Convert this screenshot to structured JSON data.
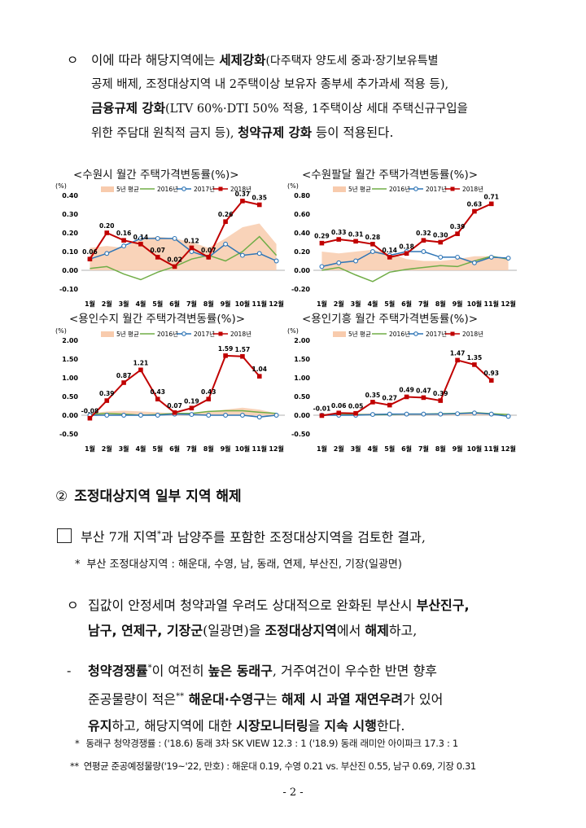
{
  "para1": {
    "bullet": "ㅇ",
    "line1_a": "이에 따라 해당지역에는 ",
    "line1_b": "세제강화",
    "line1_c": "(다주택자 양도세 중과·장기보유특별",
    "line2": "공제 배제, 조정대상지역 내 2주택이상 보유자 종부세 추가과세 적용 등),",
    "line3_a": "금융규제 강화",
    "line3_b": "(LTV 60%·DTI 50% 적용, 1주택이상 세대 주택신규구입을",
    "line4_a": "위한 주담대 원칙적 금지 등), ",
    "line4_b": "청약규제 강화",
    "line4_c": " 등이 적용된다."
  },
  "chart_data": [
    {
      "type": "line",
      "title": "<수원시 월간 주택가격변동률(%)>",
      "unit": "(%)",
      "categories": [
        "1월",
        "2월",
        "3월",
        "4월",
        "5월",
        "6월",
        "7월",
        "8월",
        "9월",
        "10월",
        "11월",
        "12월"
      ],
      "ylim": [
        -0.1,
        0.4
      ],
      "yticks": [
        "0.40",
        "0.30",
        "0.20",
        "0.10",
        "0.00",
        "-0.10"
      ],
      "legend": [
        "5년 평균",
        "2016년",
        "2017년",
        "2018년"
      ],
      "series": [
        {
          "name": "5년 평균",
          "kind": "area",
          "values": [
            0.12,
            0.13,
            0.12,
            0.17,
            0.18,
            0.17,
            0.15,
            0.12,
            0.17,
            0.23,
            0.25,
            0.14
          ]
        },
        {
          "name": "2016년",
          "kind": "line",
          "values": [
            0.01,
            0.02,
            -0.02,
            -0.05,
            -0.01,
            0.02,
            0.06,
            0.08,
            0.05,
            0.1,
            0.18,
            0.08
          ]
        },
        {
          "name": "2017년",
          "kind": "line",
          "values": [
            0.06,
            0.09,
            0.13,
            0.17,
            0.17,
            0.17,
            0.1,
            0.07,
            0.14,
            0.08,
            0.09,
            0.05
          ]
        },
        {
          "name": "2018년",
          "kind": "line",
          "values": [
            0.06,
            0.2,
            0.16,
            0.14,
            0.07,
            0.02,
            0.12,
            0.07,
            0.26,
            0.37,
            0.35,
            null
          ],
          "labels": [
            "0.06",
            "0.20",
            "0.16",
            "0.14",
            "0.07",
            "0.02",
            "0.12",
            "0.07",
            "0.26",
            "0.37",
            "0.35",
            ""
          ]
        }
      ]
    },
    {
      "type": "line",
      "title": "<수원팔달 월간 주택가격변동률(%)>",
      "unit": "(%)",
      "categories": [
        "1월",
        "2월",
        "3월",
        "4월",
        "5월",
        "6월",
        "7월",
        "8월",
        "9월",
        "10월",
        "11월",
        "12월"
      ],
      "ylim": [
        -0.2,
        0.8
      ],
      "yticks": [
        "0.80",
        "0.60",
        "0.40",
        "0.20",
        "0.00",
        "-0.20"
      ],
      "legend": [
        "5년 평균",
        "2016년",
        "2017년",
        "2018년"
      ],
      "series": [
        {
          "name": "5년 평균",
          "kind": "area",
          "values": [
            0.2,
            0.18,
            0.2,
            0.22,
            0.18,
            0.12,
            0.1,
            0.1,
            0.12,
            0.15,
            0.15,
            0.12
          ]
        },
        {
          "name": "2016년",
          "kind": "line",
          "values": [
            0.0,
            0.03,
            -0.05,
            -0.12,
            -0.02,
            0.01,
            0.03,
            0.05,
            0.04,
            0.1,
            0.15,
            0.12
          ]
        },
        {
          "name": "2017년",
          "kind": "line",
          "values": [
            0.04,
            0.08,
            0.1,
            0.2,
            0.16,
            0.2,
            0.2,
            0.14,
            0.14,
            0.08,
            0.14,
            0.13
          ]
        },
        {
          "name": "2018년",
          "kind": "line",
          "values": [
            0.29,
            0.33,
            0.31,
            0.28,
            0.14,
            0.18,
            0.32,
            0.3,
            0.39,
            0.63,
            0.71,
            null
          ],
          "labels": [
            "0.29",
            "0.33",
            "0.31",
            "0.28",
            "0.14",
            "0.18",
            "0.32",
            "0.30",
            "0.39",
            "0.63",
            "0.71",
            ""
          ]
        }
      ]
    },
    {
      "type": "line",
      "title": "<용인수지 월간 주택가격변동률(%)>",
      "unit": "(%)",
      "categories": [
        "1월",
        "2월",
        "3월",
        "4월",
        "5월",
        "6월",
        "7월",
        "8월",
        "9월",
        "10월",
        "11월",
        "12월"
      ],
      "ylim": [
        -0.5,
        2.0
      ],
      "yticks": [
        "2.00",
        "1.50",
        "1.00",
        "0.50",
        "0.00",
        "-0.50"
      ],
      "legend": [
        "5년 평균",
        "2016년",
        "2017년",
        "2018년"
      ],
      "series": [
        {
          "name": "5년 평균",
          "kind": "area",
          "values": [
            0.05,
            0.1,
            0.12,
            0.1,
            0.08,
            0.05,
            0.05,
            0.1,
            0.15,
            0.2,
            0.15,
            0.05
          ]
        },
        {
          "name": "2016년",
          "kind": "line",
          "values": [
            0.02,
            0.05,
            0.03,
            0.0,
            0.02,
            0.05,
            0.05,
            0.1,
            0.12,
            0.12,
            0.08,
            0.05
          ]
        },
        {
          "name": "2017년",
          "kind": "line",
          "values": [
            0.0,
            0.0,
            0.0,
            0.0,
            0.0,
            0.03,
            0.02,
            0.0,
            0.0,
            0.0,
            -0.05,
            0.0
          ]
        },
        {
          "name": "2018년",
          "kind": "line",
          "values": [
            -0.08,
            0.39,
            0.87,
            1.21,
            0.43,
            0.07,
            0.19,
            0.43,
            1.59,
            1.57,
            1.04,
            null
          ],
          "labels": [
            "-0.08",
            "0.39",
            "0.87",
            "1.21",
            "0.43",
            "0.07",
            "0.19",
            "0.43",
            "1.59",
            "1.57",
            "1.04",
            ""
          ]
        }
      ]
    },
    {
      "type": "line",
      "title": "<용인기흥 월간 주택가격변동률(%)>",
      "unit": "(%)",
      "categories": [
        "1월",
        "2월",
        "3월",
        "4월",
        "5월",
        "6월",
        "7월",
        "8월",
        "9월",
        "10월",
        "11월",
        "12월"
      ],
      "ylim": [
        -0.5,
        2.0
      ],
      "yticks": [
        "2.00",
        "1.50",
        "1.00",
        "0.50",
        "0.00",
        "-0.50"
      ],
      "legend": [
        "5년 평균",
        "2016년",
        "2017년",
        "2018년"
      ],
      "series": [
        {
          "name": "5년 평균",
          "kind": "area",
          "values": [
            0.02,
            0.03,
            0.04,
            0.05,
            0.04,
            0.03,
            0.03,
            0.04,
            0.06,
            0.08,
            0.05,
            0.02
          ]
        },
        {
          "name": "2016년",
          "kind": "line",
          "values": [
            0.01,
            0.02,
            0.02,
            0.01,
            0.02,
            0.03,
            0.03,
            0.04,
            0.05,
            0.07,
            0.04,
            0.02
          ]
        },
        {
          "name": "2017년",
          "kind": "line",
          "values": [
            0.0,
            0.0,
            0.0,
            0.02,
            0.03,
            0.03,
            0.03,
            0.03,
            0.04,
            0.06,
            0.03,
            -0.03
          ]
        },
        {
          "name": "2018년",
          "kind": "line",
          "values": [
            -0.01,
            0.06,
            0.05,
            0.35,
            0.27,
            0.49,
            0.47,
            0.39,
            1.47,
            1.35,
            0.93,
            null
          ],
          "labels": [
            "-0.01",
            "0.06",
            "0.05",
            "0.35",
            "0.27",
            "0.49",
            "0.47",
            "0.39",
            "1.47",
            "1.35",
            "0.93",
            ""
          ]
        }
      ]
    }
  ],
  "section2": {
    "number": "②",
    "title": "조정대상지역 일부 지역 해제"
  },
  "para2": {
    "line": "부산 7개 지역",
    "sup": "*",
    "line_rest": "과 남양주를 포함한 조정대상지역을 검토한 결과,"
  },
  "note1": {
    "mark": "*",
    "text": "부산 조정대상지역 : 해운대, 수영, 남, 동래, 연제, 부산진, 기장(일광면)"
  },
  "para3": {
    "bullet": "ㅇ",
    "line1_a": "집값이 안정세며 청약과열 우려도 상대적으로 완화된 부산시 ",
    "line1_b": "부산진구,",
    "line2_a": "남구, 연제구, 기장군",
    "line2_b": "(일광면)을 ",
    "line2_c": "조정대상지역",
    "line2_d": "에서 ",
    "line2_e": "해제",
    "line2_f": "하고,"
  },
  "para4": {
    "dash": "-",
    "l1_a": "청약경쟁률",
    "l1_sup": "*",
    "l1_b": "이 여전히 ",
    "l1_c": "높은 동래구",
    "l1_d": ", 거주여건이 우수한 반면 향후",
    "l2_a": "준공물량이 적은",
    "l2_sup": "**",
    "l2_b": " 해운대·수영구",
    "l2_c": "는 ",
    "l2_d": "해제 시 과열 재연우려",
    "l2_e": "가 있어",
    "l3_a": "유지",
    "l3_b": "하고, 해당지역에 대한 ",
    "l3_c": "시장모니터링",
    "l3_d": "을 ",
    "l3_e": "지속 시행",
    "l3_f": "한다."
  },
  "note2": {
    "mark": "*",
    "text": "동래구 청약경쟁률 : ('18.6) 동래 3차 SK VIEW 12.3 : 1  ('18.9) 동래 래미안 아이파크 17.3 : 1"
  },
  "note3": {
    "mark": "**",
    "text": "연평균 준공예정물량('19~'22, 만호) : 해운대 0.19, 수영 0.21 vs. 부산진 0.55, 남구 0.69, 기장 0.31"
  },
  "page_number": "- 2 -",
  "colors": {
    "area": "#f8cbad",
    "y2016": "#70ad47",
    "y2017": "#2e75b6",
    "y2018": "#c00000"
  }
}
